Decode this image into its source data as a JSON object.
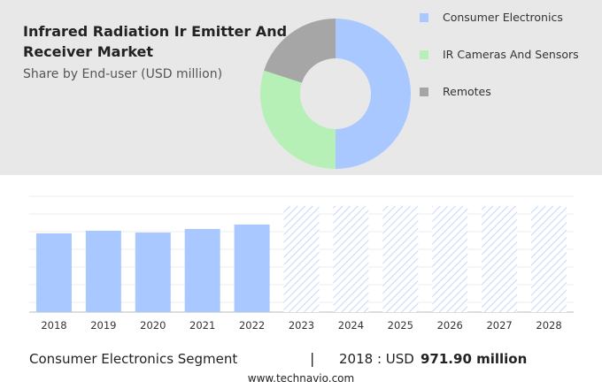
{
  "chart_data": [
    {
      "type": "pie",
      "donut": true,
      "title": "Infrared Radiation Ir Emitter And Receiver Market",
      "subtitle": "Share by End-user (USD million)",
      "categories": [
        "Consumer Electronics",
        "IR Cameras And Sensors",
        "Remotes"
      ],
      "values": [
        50,
        30,
        20
      ],
      "colors": [
        "#a9c8ff",
        "#b7f0b7",
        "#a6a6a6"
      ]
    },
    {
      "type": "bar",
      "categories": [
        "2018",
        "2019",
        "2020",
        "2021",
        "2022",
        "2023",
        "2024",
        "2025",
        "2026",
        "2027",
        "2028"
      ],
      "values": [
        971.9,
        1004.6,
        982,
        1026,
        1081,
        null,
        null,
        null,
        null,
        null,
        null
      ],
      "color": "#a9c8ff",
      "ylim": [
        0,
        1310
      ]
    }
  ],
  "footer": {
    "segment": "Consumer Electronics Segment",
    "separator": "|",
    "year_label": "2018 : USD",
    "value_label": "971.90 million",
    "source": "www.technavio.com"
  }
}
